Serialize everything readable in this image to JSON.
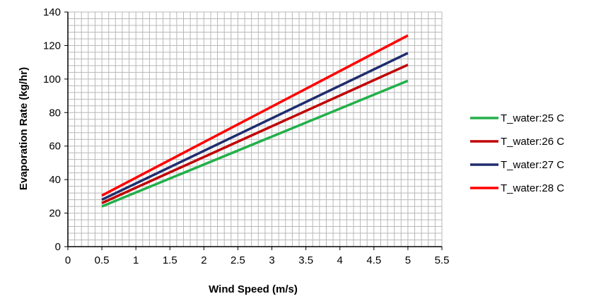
{
  "chart_data": {
    "type": "line",
    "title": "",
    "xlabel": "Wind Speed (m/s)",
    "ylabel": "Evaporation Rate (kg/hr)",
    "xlim": [
      0,
      5.5
    ],
    "ylim": [
      0,
      140
    ],
    "x_ticks": [
      "0",
      "0.5",
      "1",
      "1.5",
      "2",
      "2.5",
      "3",
      "3.5",
      "4",
      "4.5",
      "5",
      "5.5"
    ],
    "y_ticks": [
      "0",
      "20",
      "40",
      "60",
      "80",
      "100",
      "120",
      "140"
    ],
    "x_minor_step": 0.1,
    "y_minor_step": 4,
    "grid": true,
    "legend_position": "right",
    "series": [
      {
        "name": "T_water:25 C",
        "color": "#22b04a",
        "x": [
          0.5,
          5
        ],
        "values": [
          24,
          99
        ]
      },
      {
        "name": "T_water:26 C",
        "color": "#c00000",
        "x": [
          0.5,
          5
        ],
        "values": [
          26,
          108.5
        ]
      },
      {
        "name": "T_water:27 C",
        "color": "#1f2d6e",
        "x": [
          0.5,
          5
        ],
        "values": [
          28,
          115.5
        ]
      },
      {
        "name": "T_water:28 C",
        "color": "#ff0000",
        "x": [
          0.5,
          5
        ],
        "values": [
          30.5,
          126
        ]
      }
    ]
  }
}
